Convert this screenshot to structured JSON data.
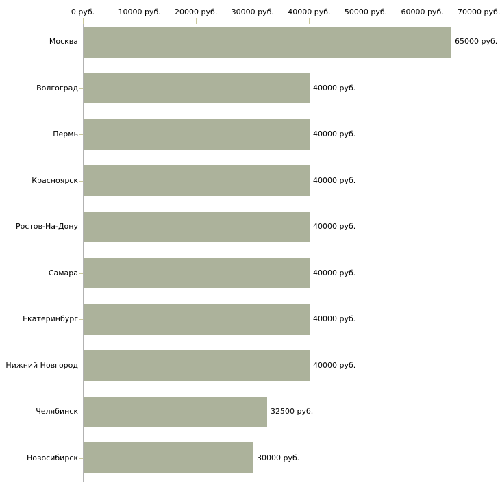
{
  "chart_data": {
    "type": "bar",
    "orientation": "horizontal",
    "title": "",
    "categories": [
      "Москва",
      "Волгоград",
      "Пермь",
      "Красноярск",
      "Ростов-На-Дону",
      "Самара",
      "Екатеринбург",
      "Нижний Новгород",
      "Челябинск",
      "Новосибирск"
    ],
    "values": [
      65000,
      40000,
      40000,
      40000,
      40000,
      40000,
      40000,
      40000,
      32500,
      30000
    ],
    "value_labels": [
      "65000 руб.",
      "40000 руб.",
      "40000 руб.",
      "40000 руб.",
      "40000 руб.",
      "40000 руб.",
      "40000 руб.",
      "40000 руб.",
      "32500 руб.",
      "30000 руб."
    ],
    "x_ticks": [
      {
        "value": 0,
        "label": "0 руб."
      },
      {
        "value": 10000,
        "label": "10000 руб."
      },
      {
        "value": 20000,
        "label": "20000 руб."
      },
      {
        "value": 30000,
        "label": "30000 руб."
      },
      {
        "value": 40000,
        "label": "40000 руб."
      },
      {
        "value": 50000,
        "label": "50000 руб."
      },
      {
        "value": 60000,
        "label": "60000 руб."
      },
      {
        "value": 70000,
        "label": "70000 руб."
      }
    ],
    "xlim": [
      0,
      70000
    ],
    "ylabel": "",
    "xlabel": "",
    "grid": false,
    "legend": null,
    "bar_color": "#acb29b",
    "axis_line_color": "#b2b2b2",
    "tick_color": "#cbc99d",
    "text_color": "#000000",
    "background_color": "#ffffff"
  }
}
